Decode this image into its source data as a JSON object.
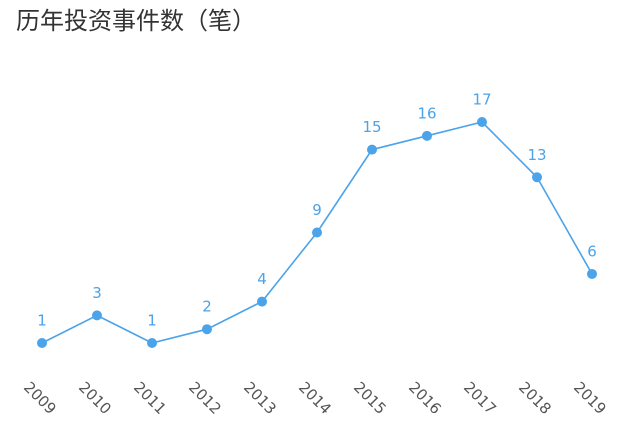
{
  "chart_data": {
    "type": "line",
    "title": "历年投资事件数（笔）",
    "categories": [
      "2009",
      "2010",
      "2011",
      "2012",
      "2013",
      "2014",
      "2015",
      "2016",
      "2017",
      "2018",
      "2019"
    ],
    "values": [
      1,
      3,
      1,
      2,
      4,
      9,
      15,
      16,
      17,
      13,
      6
    ],
    "color": "#4ba3ea"
  }
}
